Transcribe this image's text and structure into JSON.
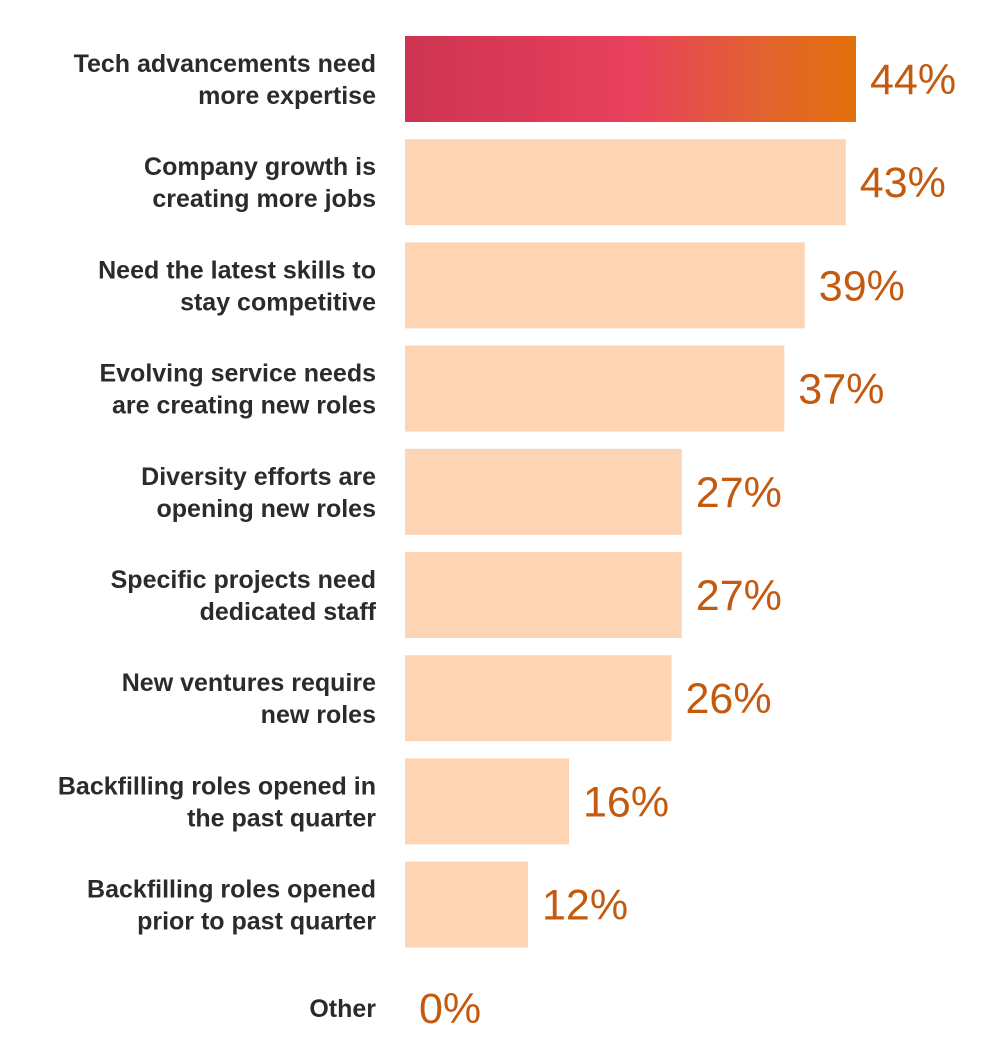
{
  "chart_data": {
    "type": "bar",
    "orientation": "horizontal",
    "categories": [
      [
        "Tech advancements need",
        "more expertise"
      ],
      [
        "Company growth is",
        "creating more jobs"
      ],
      [
        "Need the latest skills to",
        "stay competitive"
      ],
      [
        "Evolving service needs",
        "are creating new roles"
      ],
      [
        "Diversity efforts are",
        "opening new roles"
      ],
      [
        "Specific projects need",
        "dedicated staff"
      ],
      [
        "New ventures require",
        "new roles"
      ],
      [
        "Backfilling roles opened in",
        "the past quarter"
      ],
      [
        "Backfilling roles opened",
        "prior to past quarter"
      ],
      [
        "Other"
      ]
    ],
    "values": [
      44,
      43,
      39,
      37,
      27,
      27,
      26,
      16,
      12,
      0
    ],
    "value_labels": [
      "44%",
      "43%",
      "39%",
      "37%",
      "27%",
      "27%",
      "26%",
      "16%",
      "12%",
      "0%"
    ],
    "highlight_index": 0,
    "xlim": [
      0,
      44
    ],
    "grid": false,
    "legend": "none",
    "colors": {
      "bar": "#fdd5b5",
      "highlight_gradient": [
        "#cd3451",
        "#e8405d",
        "#e2632f",
        "#e2700a"
      ],
      "category_text": "#2b2b2b",
      "value_text": "#c35a0f"
    }
  }
}
